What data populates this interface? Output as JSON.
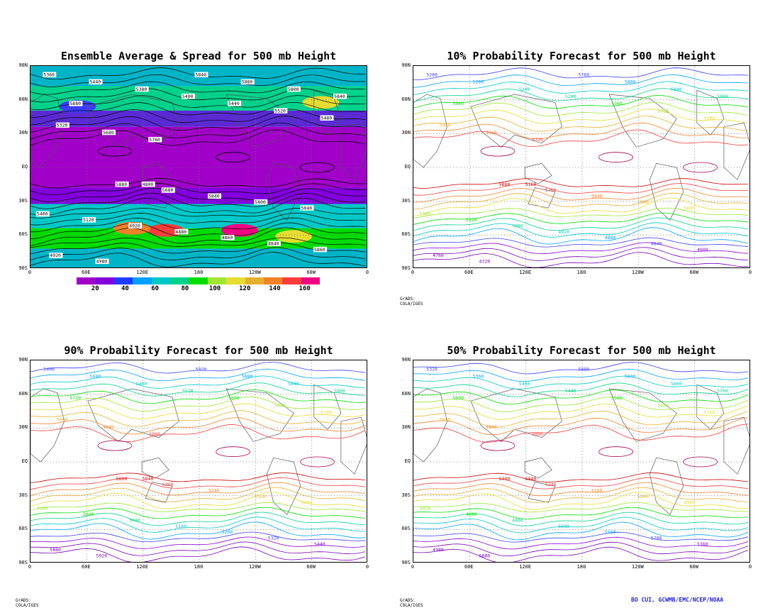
{
  "panels": [
    {
      "title": "Ensemble Average & Spread for 500 mb Height",
      "type": "shaded",
      "lat_labels": [
        "90N",
        "60N",
        "30N",
        "EQ",
        "30S",
        "60S",
        "90S"
      ],
      "lon_labels": [
        "0",
        "60E",
        "120E",
        "180",
        "120W",
        "60W",
        "0"
      ],
      "contour_labels": [
        "5360",
        "5440",
        "5380",
        "5400",
        "5440",
        "5520",
        "5480",
        "5320",
        "5680",
        "5760",
        "5840",
        "5880",
        "5800",
        "5840",
        "5880",
        "5880",
        "5680",
        "5840",
        "5800",
        "5040",
        "5400",
        "5120",
        "4920",
        "4880",
        "4860",
        "4840",
        "5860",
        "4920",
        "4980",
        "4800"
      ]
    },
    {
      "title": "10% Probability Forecast for 500 mb Height",
      "type": "lines",
      "lat_labels": [
        "90N",
        "60N",
        "30N",
        "EQ",
        "30S",
        "60S",
        "90S"
      ],
      "lon_labels": [
        "0",
        "60E",
        "120E",
        "180",
        "120W",
        "60W",
        "0"
      ],
      "contour_labels": [
        "5200",
        "5280",
        "5240",
        "5280",
        "5360",
        "5320",
        "5400",
        "5480",
        "5560",
        "5720",
        "5760",
        "5800",
        "5840",
        "5880",
        "5840",
        "5880",
        "5760",
        "5840",
        "5800",
        "5600",
        "5360",
        "5120",
        "5080",
        "4920",
        "4880",
        "4840",
        "4800",
        "4760",
        "4720",
        "5160"
      ]
    },
    {
      "title": "90% Probability Forecast for 500 mb Height",
      "type": "lines",
      "lat_labels": [
        "90N",
        "60N",
        "30N",
        "EQ",
        "30S",
        "60S",
        "90S"
      ],
      "lon_labels": [
        "0",
        "60E",
        "120E",
        "180",
        "120W",
        "60W",
        "0"
      ],
      "contour_labels": [
        "5400",
        "5440",
        "5480",
        "5520",
        "5600",
        "5680",
        "5760",
        "5800",
        "5840",
        "5880",
        "5920",
        "5880",
        "5840",
        "5800",
        "5720",
        "5600",
        "5360",
        "5240",
        "5120",
        "5000",
        "4980",
        "5040",
        "5080",
        "5160",
        "5200",
        "5320",
        "5440",
        "5880",
        "5920",
        "5840"
      ]
    },
    {
      "title": "50% Probability Forecast for 500 mb Height",
      "type": "lines",
      "lat_labels": [
        "90N",
        "60N",
        "30N",
        "EQ",
        "30S",
        "60S",
        "90S"
      ],
      "lon_labels": [
        "0",
        "60E",
        "120E",
        "180",
        "120W",
        "60W",
        "0"
      ],
      "contour_labels": [
        "5320",
        "5360",
        "5400",
        "5440",
        "5560",
        "5680",
        "5760",
        "5800",
        "5840",
        "5880",
        "5880",
        "5840",
        "5800",
        "5760",
        "5600",
        "5400",
        "5240",
        "5160",
        "5040",
        "4960",
        "4920",
        "4880",
        "4860",
        "5000",
        "5160",
        "5280",
        "5360",
        "4980",
        "5880",
        "5840"
      ]
    }
  ],
  "colorbar": {
    "ticks": [
      "20",
      "40",
      "60",
      "80",
      "100",
      "120",
      "140",
      "160"
    ],
    "colors": [
      "#a000c8",
      "#8200dc",
      "#1e3cff",
      "#00a0ff",
      "#00c8c8",
      "#00d28c",
      "#00dc00",
      "#a0e632",
      "#e6dc32",
      "#e6af2d",
      "#f08228",
      "#fa3c3c",
      "#f00082"
    ]
  },
  "contour_colors": [
    "#7800b4",
    "#8c00dc",
    "#3c3cff",
    "#00a0ff",
    "#00c8c8",
    "#00d28c",
    "#00dc00",
    "#a0e632",
    "#e6dc32",
    "#e6af2d",
    "#f08228",
    "#fa3c3c",
    "#c80000",
    "#a00050"
  ],
  "footers": {
    "panel2": "GrADS: COLA/IGES",
    "panel3": "GrADS: COLA/IGES",
    "panel4": "GrADS: COLA/IGES",
    "credit": "BO CUI, GCWMB/EMC/NCEP/NOAA"
  }
}
